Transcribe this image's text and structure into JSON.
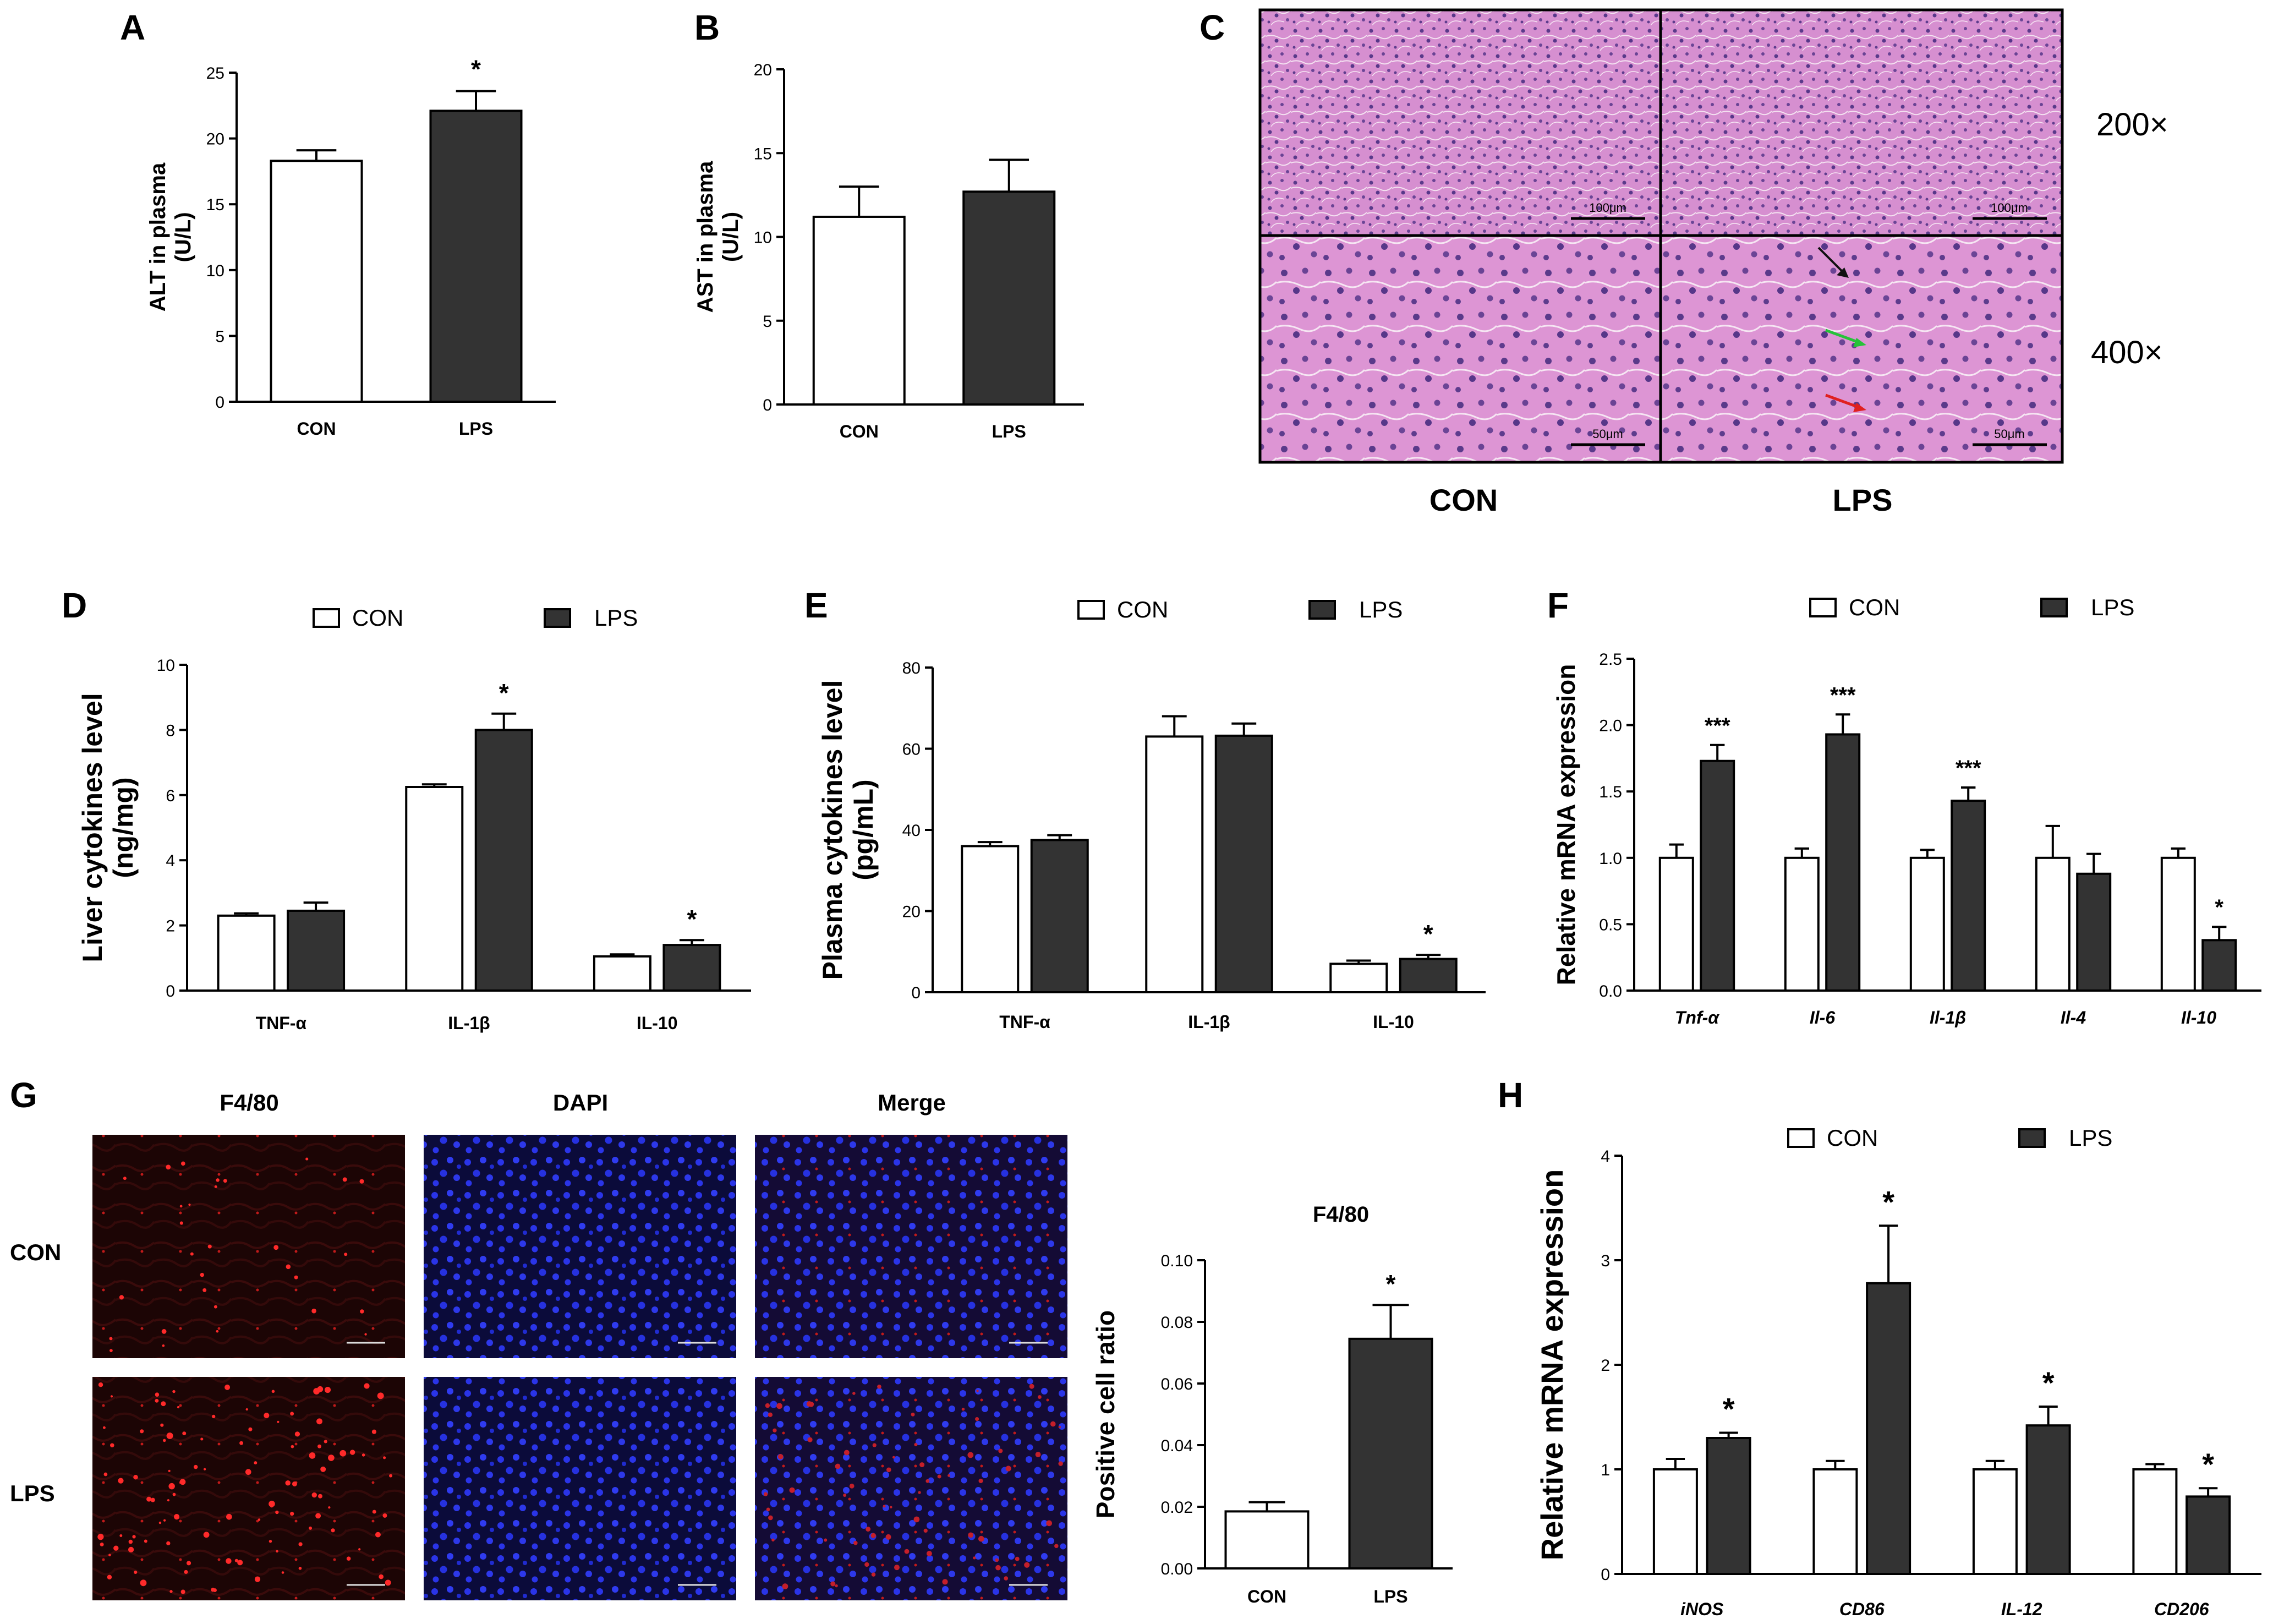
{
  "panels": {
    "A": "A",
    "B": "B",
    "C": "C",
    "D": "D",
    "E": "E",
    "F": "F",
    "G": "G",
    "H": "H"
  },
  "colors": {
    "con_fill": "#ffffff",
    "lps_fill": "#333333",
    "he_stain": "#d48fcf",
    "he_stain_dark": "#c783c6",
    "fluor_bg": "#1a0606",
    "dapi_bg": "#0b0b3a",
    "dapi_dot": "#2a34e8",
    "f480_dot": "#ff2a2a"
  },
  "panel_c": {
    "row_labels": [
      "200×",
      "400×"
    ],
    "col_labels": [
      "CON",
      "LPS"
    ],
    "scale_labels": [
      "100μm",
      "100μm",
      "50μm",
      "50μm"
    ]
  },
  "panel_g": {
    "col_labels": [
      "F4/80",
      "DAPI",
      "Merge"
    ],
    "row_labels": [
      "CON",
      "LPS"
    ]
  },
  "chart_data": [
    {
      "id": "A",
      "type": "bar",
      "categories": [
        "CON",
        "LPS"
      ],
      "values": [
        18.3,
        22.1
      ],
      "errors": [
        0.8,
        1.5
      ],
      "significance": [
        "",
        "*"
      ],
      "ylabel": "ALT in plasma",
      "ylabel2": "(U/L)",
      "ylim": [
        0,
        25
      ],
      "yticks": [
        0,
        5,
        10,
        15,
        20,
        25
      ]
    },
    {
      "id": "B",
      "type": "bar",
      "categories": [
        "CON",
        "LPS"
      ],
      "values": [
        11.2,
        12.7
      ],
      "errors": [
        1.8,
        1.9
      ],
      "significance": [
        "",
        ""
      ],
      "ylabel": "AST in plasma",
      "ylabel2": "(U/L)",
      "ylim": [
        0,
        20
      ],
      "yticks": [
        0,
        5,
        10,
        15,
        20
      ]
    },
    {
      "id": "D",
      "type": "bar",
      "categories": [
        "TNF-α",
        "IL-1β",
        "IL-10"
      ],
      "series": [
        {
          "name": "CON",
          "values": [
            2.3,
            6.25,
            1.05
          ],
          "errors": [
            0.07,
            0.08,
            0.06
          ]
        },
        {
          "name": "LPS",
          "values": [
            2.45,
            8.0,
            1.4
          ],
          "errors": [
            0.25,
            0.5,
            0.15
          ]
        }
      ],
      "significance": [
        "",
        "*",
        "*"
      ],
      "ylabel": "Liver cytokines level",
      "ylabel2": "(ng/mg)",
      "ylim": [
        0,
        10
      ],
      "yticks": [
        0,
        2,
        4,
        6,
        8,
        10
      ],
      "legend": [
        "CON",
        "LPS"
      ]
    },
    {
      "id": "E",
      "type": "bar",
      "categories": [
        "TNF-α",
        "IL-1β",
        "IL-10"
      ],
      "series": [
        {
          "name": "CON",
          "values": [
            36,
            63,
            7
          ],
          "errors": [
            1,
            5,
            0.8
          ]
        },
        {
          "name": "LPS",
          "values": [
            37.5,
            63.2,
            8.2
          ],
          "errors": [
            1.2,
            3,
            1
          ]
        }
      ],
      "significance": [
        "",
        "",
        "*"
      ],
      "ylabel": "Plasma cytokines level",
      "ylabel2": "(pg/mL)",
      "ylim": [
        0,
        80
      ],
      "yticks": [
        0,
        20,
        40,
        60,
        80
      ],
      "legend": [
        "CON",
        "LPS"
      ]
    },
    {
      "id": "F",
      "type": "bar",
      "categories": [
        "Tnf-α",
        "Il-6",
        "Il-1β",
        "Il-4",
        "Il-10"
      ],
      "series": [
        {
          "name": "CON",
          "values": [
            1.0,
            1.0,
            1.0,
            1.0,
            1.0
          ],
          "errors": [
            0.1,
            0.07,
            0.06,
            0.24,
            0.07
          ]
        },
        {
          "name": "LPS",
          "values": [
            1.73,
            1.93,
            1.43,
            0.88,
            0.38
          ],
          "errors": [
            0.12,
            0.15,
            0.1,
            0.15,
            0.1
          ]
        }
      ],
      "significance": [
        "***",
        "***",
        "***",
        "",
        "*"
      ],
      "ylabel": "Relative mRNA expression",
      "ylim": [
        0,
        2.5
      ],
      "yticks": [
        "0.0",
        "0.5",
        "1.0",
        "1.5",
        "2.0",
        "2.5"
      ],
      "legend": [
        "CON",
        "LPS"
      ]
    },
    {
      "id": "G",
      "type": "bar",
      "title": "F4/80",
      "categories": [
        "CON",
        "LPS"
      ],
      "values": [
        0.0185,
        0.0745
      ],
      "errors": [
        0.003,
        0.011
      ],
      "significance": [
        "",
        "*"
      ],
      "ylabel": "Positive cell ratio",
      "ylim": [
        0,
        0.1
      ],
      "yticks": [
        "0.00",
        "0.02",
        "0.04",
        "0.06",
        "0.08",
        "0.10"
      ]
    },
    {
      "id": "H",
      "type": "bar",
      "categories": [
        "iNOS",
        "CD86",
        "IL-12",
        "CD206"
      ],
      "series": [
        {
          "name": "CON",
          "values": [
            1.0,
            1.0,
            1.0,
            1.0
          ],
          "errors": [
            0.1,
            0.08,
            0.08,
            0.05
          ]
        },
        {
          "name": "LPS",
          "values": [
            1.3,
            2.78,
            1.42,
            0.74
          ],
          "errors": [
            0.05,
            0.55,
            0.18,
            0.08
          ]
        }
      ],
      "significance": [
        "*",
        "*",
        "*",
        "*"
      ],
      "ylabel": "Relative mRNA expression",
      "ylim": [
        0,
        4
      ],
      "yticks": [
        0,
        1,
        2,
        3,
        4
      ],
      "legend": [
        "CON",
        "LPS"
      ]
    }
  ]
}
